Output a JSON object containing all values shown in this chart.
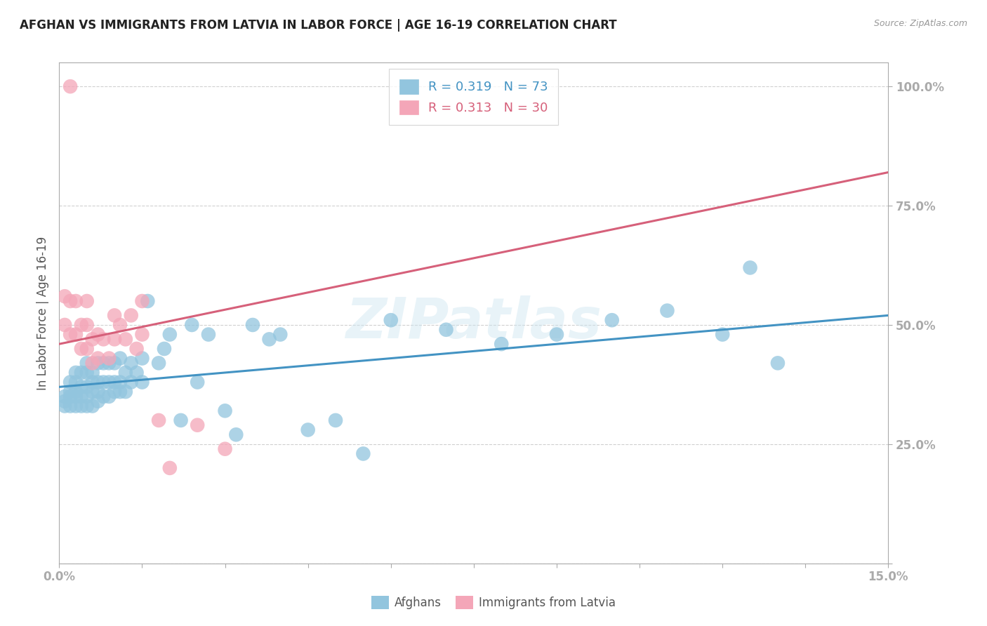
{
  "title": "AFGHAN VS IMMIGRANTS FROM LATVIA IN LABOR FORCE | AGE 16-19 CORRELATION CHART",
  "source": "Source: ZipAtlas.com",
  "ylabel": "In Labor Force | Age 16-19",
  "x_min": 0.0,
  "x_max": 0.15,
  "y_min": 0.0,
  "y_max": 1.05,
  "y_ticks": [
    0.0,
    0.25,
    0.5,
    0.75,
    1.0
  ],
  "y_tick_labels": [
    "",
    "25.0%",
    "50.0%",
    "75.0%",
    "100.0%"
  ],
  "x_ticks": [
    0.0,
    0.015,
    0.03,
    0.045,
    0.06,
    0.075,
    0.09,
    0.105,
    0.12,
    0.135,
    0.15
  ],
  "watermark_text": "ZIPatlas",
  "blue_color": "#92c5de",
  "pink_color": "#f4a6b8",
  "blue_line_color": "#4393c3",
  "pink_line_color": "#d6607a",
  "blue_r": "0.319",
  "blue_n": "73",
  "pink_r": "0.313",
  "pink_n": "30",
  "blue_intercept": 0.37,
  "blue_slope": 1.0,
  "pink_intercept": 0.46,
  "pink_slope": 2.4,
  "blue_scatter_x": [
    0.001,
    0.001,
    0.001,
    0.002,
    0.002,
    0.002,
    0.002,
    0.003,
    0.003,
    0.003,
    0.003,
    0.003,
    0.004,
    0.004,
    0.004,
    0.004,
    0.005,
    0.005,
    0.005,
    0.005,
    0.005,
    0.006,
    0.006,
    0.006,
    0.006,
    0.007,
    0.007,
    0.007,
    0.007,
    0.008,
    0.008,
    0.008,
    0.009,
    0.009,
    0.009,
    0.01,
    0.01,
    0.01,
    0.011,
    0.011,
    0.011,
    0.012,
    0.012,
    0.013,
    0.013,
    0.014,
    0.015,
    0.015,
    0.016,
    0.018,
    0.019,
    0.02,
    0.022,
    0.024,
    0.025,
    0.027,
    0.03,
    0.032,
    0.035,
    0.038,
    0.04,
    0.045,
    0.05,
    0.055,
    0.06,
    0.07,
    0.08,
    0.09,
    0.1,
    0.11,
    0.12,
    0.125,
    0.13
  ],
  "blue_scatter_y": [
    0.33,
    0.34,
    0.35,
    0.33,
    0.35,
    0.36,
    0.38,
    0.33,
    0.35,
    0.36,
    0.38,
    0.4,
    0.33,
    0.35,
    0.37,
    0.4,
    0.33,
    0.35,
    0.37,
    0.4,
    0.42,
    0.33,
    0.36,
    0.38,
    0.4,
    0.34,
    0.36,
    0.38,
    0.42,
    0.35,
    0.38,
    0.42,
    0.35,
    0.38,
    0.42,
    0.36,
    0.38,
    0.42,
    0.36,
    0.38,
    0.43,
    0.36,
    0.4,
    0.38,
    0.42,
    0.4,
    0.38,
    0.43,
    0.55,
    0.42,
    0.45,
    0.48,
    0.3,
    0.5,
    0.38,
    0.48,
    0.32,
    0.27,
    0.5,
    0.47,
    0.48,
    0.28,
    0.3,
    0.23,
    0.51,
    0.49,
    0.46,
    0.48,
    0.51,
    0.53,
    0.48,
    0.62,
    0.42
  ],
  "pink_scatter_x": [
    0.001,
    0.001,
    0.002,
    0.002,
    0.002,
    0.003,
    0.003,
    0.004,
    0.004,
    0.005,
    0.005,
    0.005,
    0.006,
    0.006,
    0.007,
    0.007,
    0.008,
    0.009,
    0.01,
    0.01,
    0.011,
    0.012,
    0.013,
    0.014,
    0.015,
    0.015,
    0.018,
    0.02,
    0.025,
    0.03
  ],
  "pink_scatter_y": [
    0.5,
    0.56,
    1.0,
    0.55,
    0.48,
    0.55,
    0.48,
    0.45,
    0.5,
    0.45,
    0.5,
    0.55,
    0.42,
    0.47,
    0.43,
    0.48,
    0.47,
    0.43,
    0.47,
    0.52,
    0.5,
    0.47,
    0.52,
    0.45,
    0.55,
    0.48,
    0.3,
    0.2,
    0.29,
    0.24
  ],
  "title_fontsize": 12,
  "source_fontsize": 9,
  "tick_label_fontsize": 12,
  "axis_label_fontsize": 12,
  "legend_fontsize": 13,
  "background_color": "#ffffff",
  "grid_color": "#d0d0d0",
  "tick_color": "#4472c4",
  "axis_color": "#aaaaaa",
  "label_color": "#555555"
}
